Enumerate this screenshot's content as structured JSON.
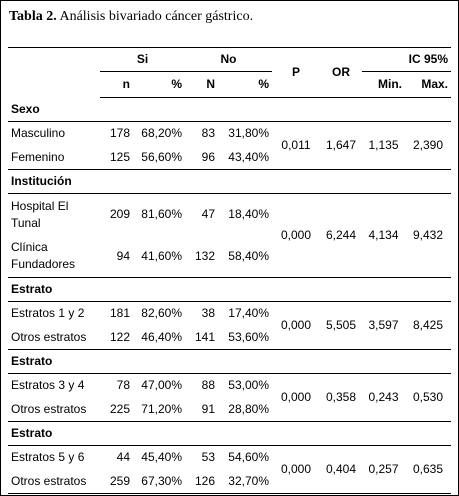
{
  "title": {
    "label": "Tabla 2.",
    "text": "Análisis bivariado cáncer gástrico."
  },
  "table": {
    "header": {
      "si": "Si",
      "no": "No",
      "p": "P",
      "or": "OR",
      "ic": "IC 95%",
      "sub": [
        "n",
        "%",
        "N",
        "%",
        "Min.",
        "Max."
      ]
    },
    "groups": [
      {
        "name": "Sexo",
        "rows": [
          {
            "label": "Masculino",
            "values": [
              "178",
              "68,20%",
              "83",
              "31,80%"
            ]
          },
          {
            "label": "Femenino",
            "values": [
              "125",
              "56,60%",
              "96",
              "43,40%"
            ]
          }
        ],
        "stats": [
          "0,011",
          "1,647",
          "1,135",
          "2,390"
        ]
      },
      {
        "name": "Institución",
        "rows": [
          {
            "label": "Hospital El Tunal",
            "values": [
              "209",
              "81,60%",
              "47",
              "18,40%"
            ]
          },
          {
            "label": "Clínica Fundadores",
            "values": [
              "94",
              "41,60%",
              "132",
              "58,40%"
            ]
          }
        ],
        "stats": [
          "0,000",
          "6,244",
          "4,134",
          "9,432"
        ]
      },
      {
        "name": "Estrato",
        "rows": [
          {
            "label": "Estratos 1 y 2",
            "values": [
              "181",
              "82,60%",
              "38",
              "17,40%"
            ]
          },
          {
            "label": "Otros estratos",
            "values": [
              "122",
              "46,40%",
              "141",
              "53,60%"
            ]
          }
        ],
        "stats": [
          "0,000",
          "5,505",
          "3,597",
          "8,425"
        ]
      },
      {
        "name": "Estrato",
        "rows": [
          {
            "label": "Estratos 3 y 4",
            "values": [
              "78",
              "47,00%",
              "88",
              "53,00%"
            ]
          },
          {
            "label": "Otros estratos",
            "values": [
              "225",
              "71,20%",
              "91",
              "28,80%"
            ]
          }
        ],
        "stats": [
          "0,000",
          "0,358",
          "0,243",
          "0,530"
        ]
      },
      {
        "name": "Estrato",
        "rows": [
          {
            "label": "Estratos 5 y 6",
            "values": [
              "44",
              "45,40%",
              "53",
              "54,60%"
            ]
          },
          {
            "label": "Otros estratos",
            "values": [
              "259",
              "67,30%",
              "126",
              "32,70%"
            ]
          }
        ],
        "stats": [
          "0,000",
          "0,404",
          "0,257",
          "0,635"
        ]
      }
    ]
  }
}
